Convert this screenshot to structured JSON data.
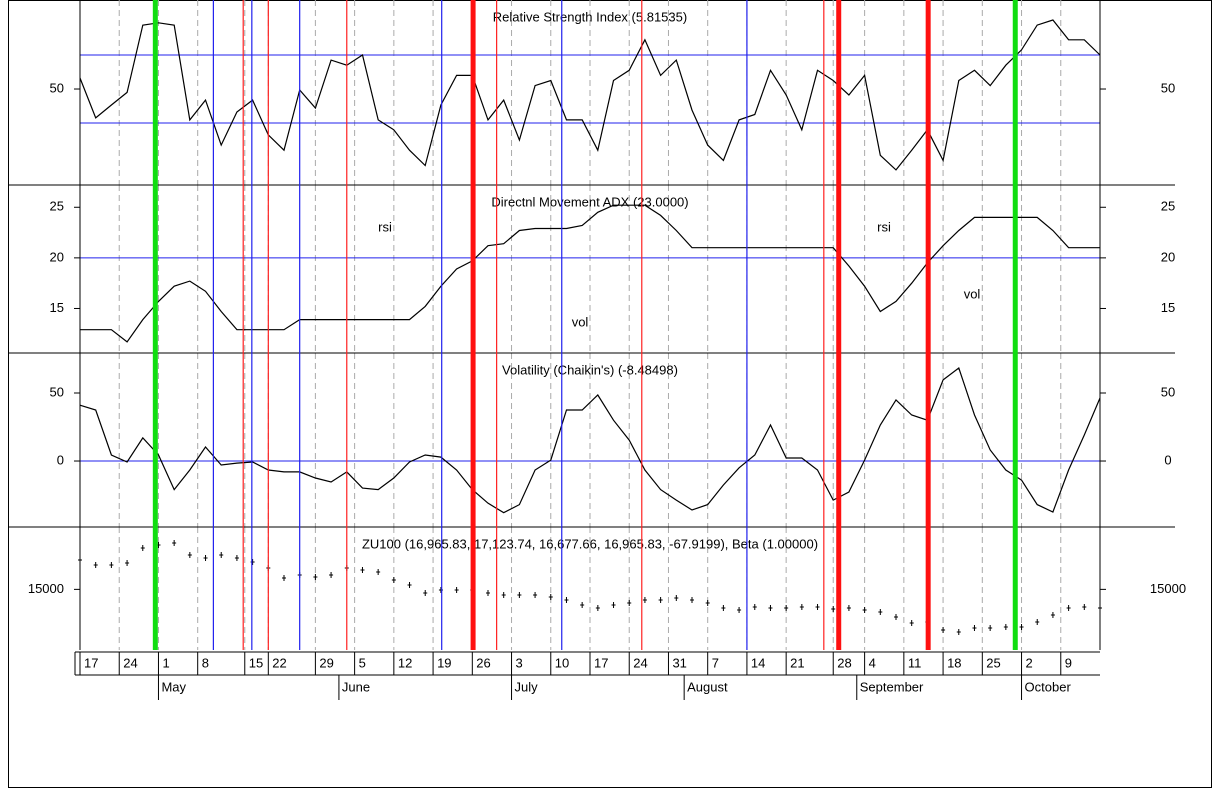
{
  "x_axis": {
    "x": [
      0,
      2,
      4,
      6,
      8,
      10,
      12,
      14,
      16,
      18,
      20,
      22,
      24,
      26,
      28,
      30,
      32,
      34,
      36,
      38,
      40,
      42,
      44,
      46,
      48,
      50,
      52,
      54,
      56,
      58,
      60,
      62,
      64,
      66,
      68,
      70,
      72,
      74,
      76,
      78,
      80,
      82,
      84,
      86,
      88,
      90,
      92,
      94,
      96,
      98,
      100,
      102,
      104,
      106,
      108,
      110,
      112,
      114,
      116,
      118,
      120,
      122,
      124,
      126,
      128,
      130
    ],
    "xlim": [
      0,
      130
    ],
    "xticks": [
      {
        "value": 0,
        "label": "17"
      },
      {
        "value": 5,
        "label": "24"
      },
      {
        "value": 10,
        "label": "1"
      },
      {
        "value": 15,
        "label": "8"
      },
      {
        "value": 21,
        "label": "15"
      },
      {
        "value": 24,
        "label": "22"
      },
      {
        "value": 30,
        "label": "29"
      },
      {
        "value": 35,
        "label": "5"
      },
      {
        "value": 40,
        "label": "12"
      },
      {
        "value": 45,
        "label": "19"
      },
      {
        "value": 50,
        "label": "26"
      },
      {
        "value": 55,
        "label": "3"
      },
      {
        "value": 60,
        "label": "10"
      },
      {
        "value": 65,
        "label": "17"
      },
      {
        "value": 70,
        "label": "24"
      },
      {
        "value": 75,
        "label": "31"
      },
      {
        "value": 80,
        "label": "7"
      },
      {
        "value": 85,
        "label": "14"
      },
      {
        "value": 90,
        "label": "21"
      },
      {
        "value": 96,
        "label": "28"
      },
      {
        "value": 100,
        "label": "4"
      },
      {
        "value": 105,
        "label": "11"
      },
      {
        "value": 110,
        "label": "18"
      },
      {
        "value": 115,
        "label": "25"
      },
      {
        "value": 120,
        "label": "2"
      },
      {
        "value": 125,
        "label": "9"
      }
    ],
    "month_ticks": [
      {
        "value": 10,
        "label": "May"
      },
      {
        "value": 33,
        "label": "June"
      },
      {
        "value": 55,
        "label": "July"
      },
      {
        "value": 77,
        "label": "August"
      },
      {
        "value": 99,
        "label": "September"
      },
      {
        "value": 120,
        "label": "October"
      }
    ],
    "signals": [
      {
        "style": "thin",
        "color": "#ff2020",
        "x": [
          20.8,
          24.0,
          34.0,
          53.1,
          71.6,
          94.8
        ]
      },
      {
        "style": "thin",
        "color": "#2020ee",
        "x": [
          17.0,
          21.9,
          28.0,
          46.1,
          61.4,
          85.0
        ]
      },
      {
        "style": "thick",
        "color": "#ff1010",
        "x": [
          50.1,
          96.7,
          108.1
        ]
      },
      {
        "style": "thick",
        "color": "#10dd10",
        "x": [
          9.6,
          119.2
        ]
      }
    ]
  },
  "chart_data": [
    {
      "type": "line",
      "title": "Relative Strength Index (5.81535)",
      "ylim": [
        -6.5,
        102.4
      ],
      "yticks": [
        50
      ],
      "levels": [
        70,
        30
      ],
      "level_color": "#2020ee",
      "series": [
        {
          "color": "#000000",
          "values": [
            56.5,
            33,
            40.6,
            48,
            87.6,
            89,
            87.6,
            31.8,
            43.5,
            17,
            36.5,
            43.5,
            23,
            14,
            49.4,
            38.8,
            67,
            64,
            70,
            31.8,
            26,
            14,
            5,
            40.6,
            58,
            58,
            31.8,
            43.5,
            20,
            52,
            55,
            31.8,
            31.8,
            14,
            55,
            61,
            79,
            58,
            67,
            37.6,
            17,
            8,
            31.8,
            35,
            61,
            46.5,
            26,
            61,
            55,
            46.5,
            58,
            11,
            2.4,
            14,
            26,
            8,
            55,
            61,
            52,
            64,
            73,
            87.6,
            90.6,
            79,
            79,
            70
          ]
        }
      ]
    },
    {
      "type": "line",
      "title": "Directnl Movement ADX (23.0000)",
      "ylim": [
        10.6,
        27.2
      ],
      "yticks": [
        15,
        20,
        25
      ],
      "levels": [
        20
      ],
      "level_color": "#2020ee",
      "annotations": [
        "rsi",
        "vol",
        "rsi",
        "vol"
      ],
      "annotation_color": "#2020dd",
      "series": [
        {
          "color": "#000000",
          "values": [
            12.9,
            12.9,
            12.9,
            11.7,
            13.9,
            15.7,
            17.2,
            17.7,
            16.7,
            14.7,
            12.9,
            12.9,
            12.9,
            12.9,
            13.9,
            13.9,
            13.9,
            13.9,
            13.9,
            13.9,
            13.9,
            13.9,
            15.2,
            17.2,
            18.9,
            19.7,
            21.2,
            21.4,
            22.7,
            22.9,
            22.9,
            22.9,
            23.2,
            24.5,
            25.2,
            25.2,
            25.2,
            24.2,
            22.7,
            21,
            21,
            21,
            21,
            21,
            21,
            21,
            21,
            21,
            21,
            19.2,
            17.2,
            14.7,
            15.7,
            17.5,
            19.5,
            21.2,
            22.7,
            24,
            24,
            24,
            24,
            24,
            22.7,
            21,
            21,
            21
          ]
        }
      ]
    },
    {
      "type": "line",
      "title": "Volatility (Chaikin's) (-8.48498)",
      "ylim": [
        -48.5,
        79.4
      ],
      "yticks": [
        0,
        50
      ],
      "levels": [
        0
      ],
      "level_color": "#2020ee",
      "series": [
        {
          "color": "#000000",
          "values": [
            41,
            37.5,
            4.4,
            -0.7,
            17,
            4.4,
            -21,
            -6.6,
            10.3,
            -2.9,
            -1.5,
            -0.7,
            -6.6,
            -8,
            -8,
            -12.5,
            -15.4,
            -8,
            -19.9,
            -21,
            -12.5,
            -0.7,
            4.4,
            2.9,
            -6.6,
            -21,
            -31,
            -38,
            -32,
            -6.6,
            0.7,
            37.5,
            37.5,
            48.5,
            30,
            15.4,
            -6.6,
            -21,
            -28.7,
            -36,
            -32,
            -17.6,
            -5,
            4.4,
            26.5,
            2.2,
            2.2,
            -6.6,
            -28.7,
            -22.8,
            0.7,
            26.5,
            44.9,
            33.8,
            30,
            59.6,
            68.4,
            33.8,
            8.1,
            -6.6,
            -14,
            -32,
            -37.5,
            -6.6,
            19.1,
            46.3
          ]
        }
      ]
    },
    {
      "type": "dot",
      "title": "ZU100 (16,965.83, 17,123.74, 16,677.66, 16,965.83, -67.9199), Beta (1.00000)",
      "ylim": [
        11500,
        18600
      ],
      "yticks": [
        15000
      ],
      "series": [
        {
          "color": "#000000",
          "values": [
            16695,
            16407,
            16407,
            16522,
            17388,
            17561,
            17676,
            16984,
            16811,
            16984,
            16811,
            16580,
            16234,
            15656,
            15829,
            15714,
            15829,
            16234,
            16118,
            16003,
            15541,
            15252,
            14790,
            14964,
            14964,
            14964,
            14790,
            14675,
            14675,
            14675,
            14560,
            14386,
            14098,
            13925,
            14098,
            14213,
            14386,
            14386,
            14502,
            14386,
            14213,
            13925,
            13809,
            13982,
            13925,
            13925,
            13982,
            13982,
            13867,
            13925,
            13809,
            13694,
            13405,
            13059,
            13117,
            12655,
            12540,
            12770,
            12770,
            12828,
            12828,
            13117,
            13521,
            13925,
            13982,
            13925
          ]
        }
      ]
    }
  ]
}
